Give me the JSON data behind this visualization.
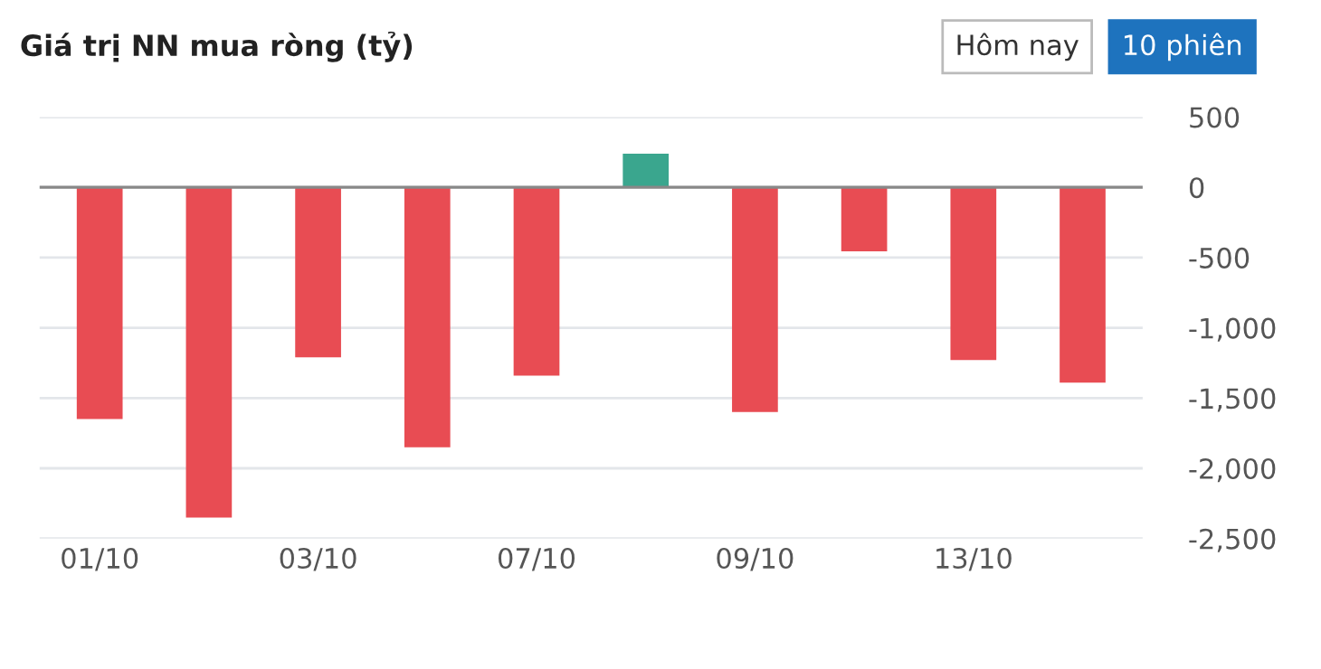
{
  "chart_data": {
    "type": "bar",
    "title": "Giá trị NN mua ròng (tỷ)",
    "categories": [
      "01/10",
      null,
      "03/10",
      null,
      "07/10",
      null,
      "09/10",
      null,
      "13/10",
      null
    ],
    "values": [
      -1650,
      -2350,
      -1210,
      -1850,
      -1340,
      240,
      -1600,
      -455,
      -1230,
      -1390
    ],
    "colors": [
      "#e84c53",
      "#e84c53",
      "#e84c53",
      "#e84c53",
      "#e84c53",
      "#3aa68e",
      "#e84c53",
      "#e84c53",
      "#e84c53",
      "#e84c53"
    ],
    "ylim": [
      -2500,
      500
    ],
    "yticks": [
      500,
      0,
      -500,
      {
        "value": -1000,
        "label": "-1,000"
      },
      {
        "value": -1500,
        "label": "-1,500"
      },
      {
        "value": -2000,
        "label": "-2,000"
      },
      {
        "value": -2500,
        "label": "-2,500"
      }
    ],
    "grid": "y",
    "annotations": [
      "Hôm nay",
      "10 phiên"
    ]
  }
}
